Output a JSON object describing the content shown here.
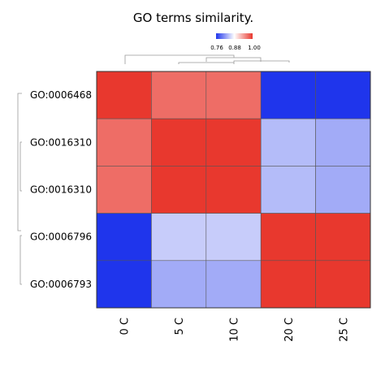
{
  "chart_data": {
    "type": "heatmap",
    "title": "GO terms similarity.",
    "rows": [
      "GO:0006468",
      "GO:0016310",
      "GO:0016310",
      "GO:0006796",
      "GO:0006793"
    ],
    "columns": [
      "0 C",
      "5 C",
      "10 C",
      "20 C",
      "25 C"
    ],
    "values": [
      [
        1.0,
        0.94,
        0.94,
        0.76,
        0.76
      ],
      [
        0.94,
        1.0,
        1.0,
        0.84,
        0.83
      ],
      [
        0.94,
        1.0,
        1.0,
        0.84,
        0.83
      ],
      [
        0.76,
        0.85,
        0.85,
        1.0,
        1.0
      ],
      [
        0.76,
        0.83,
        0.83,
        1.0,
        1.0
      ]
    ],
    "legend": {
      "ticks": [
        "0.76",
        "0.88",
        "1.00"
      ],
      "min": 0.76,
      "mid": 0.88,
      "max": 1.0,
      "colors": {
        "low": "#1f35ec",
        "mid": "#ffffff",
        "high": "#e8382e"
      }
    },
    "dendrogram": {
      "rows": true,
      "columns": true
    }
  }
}
